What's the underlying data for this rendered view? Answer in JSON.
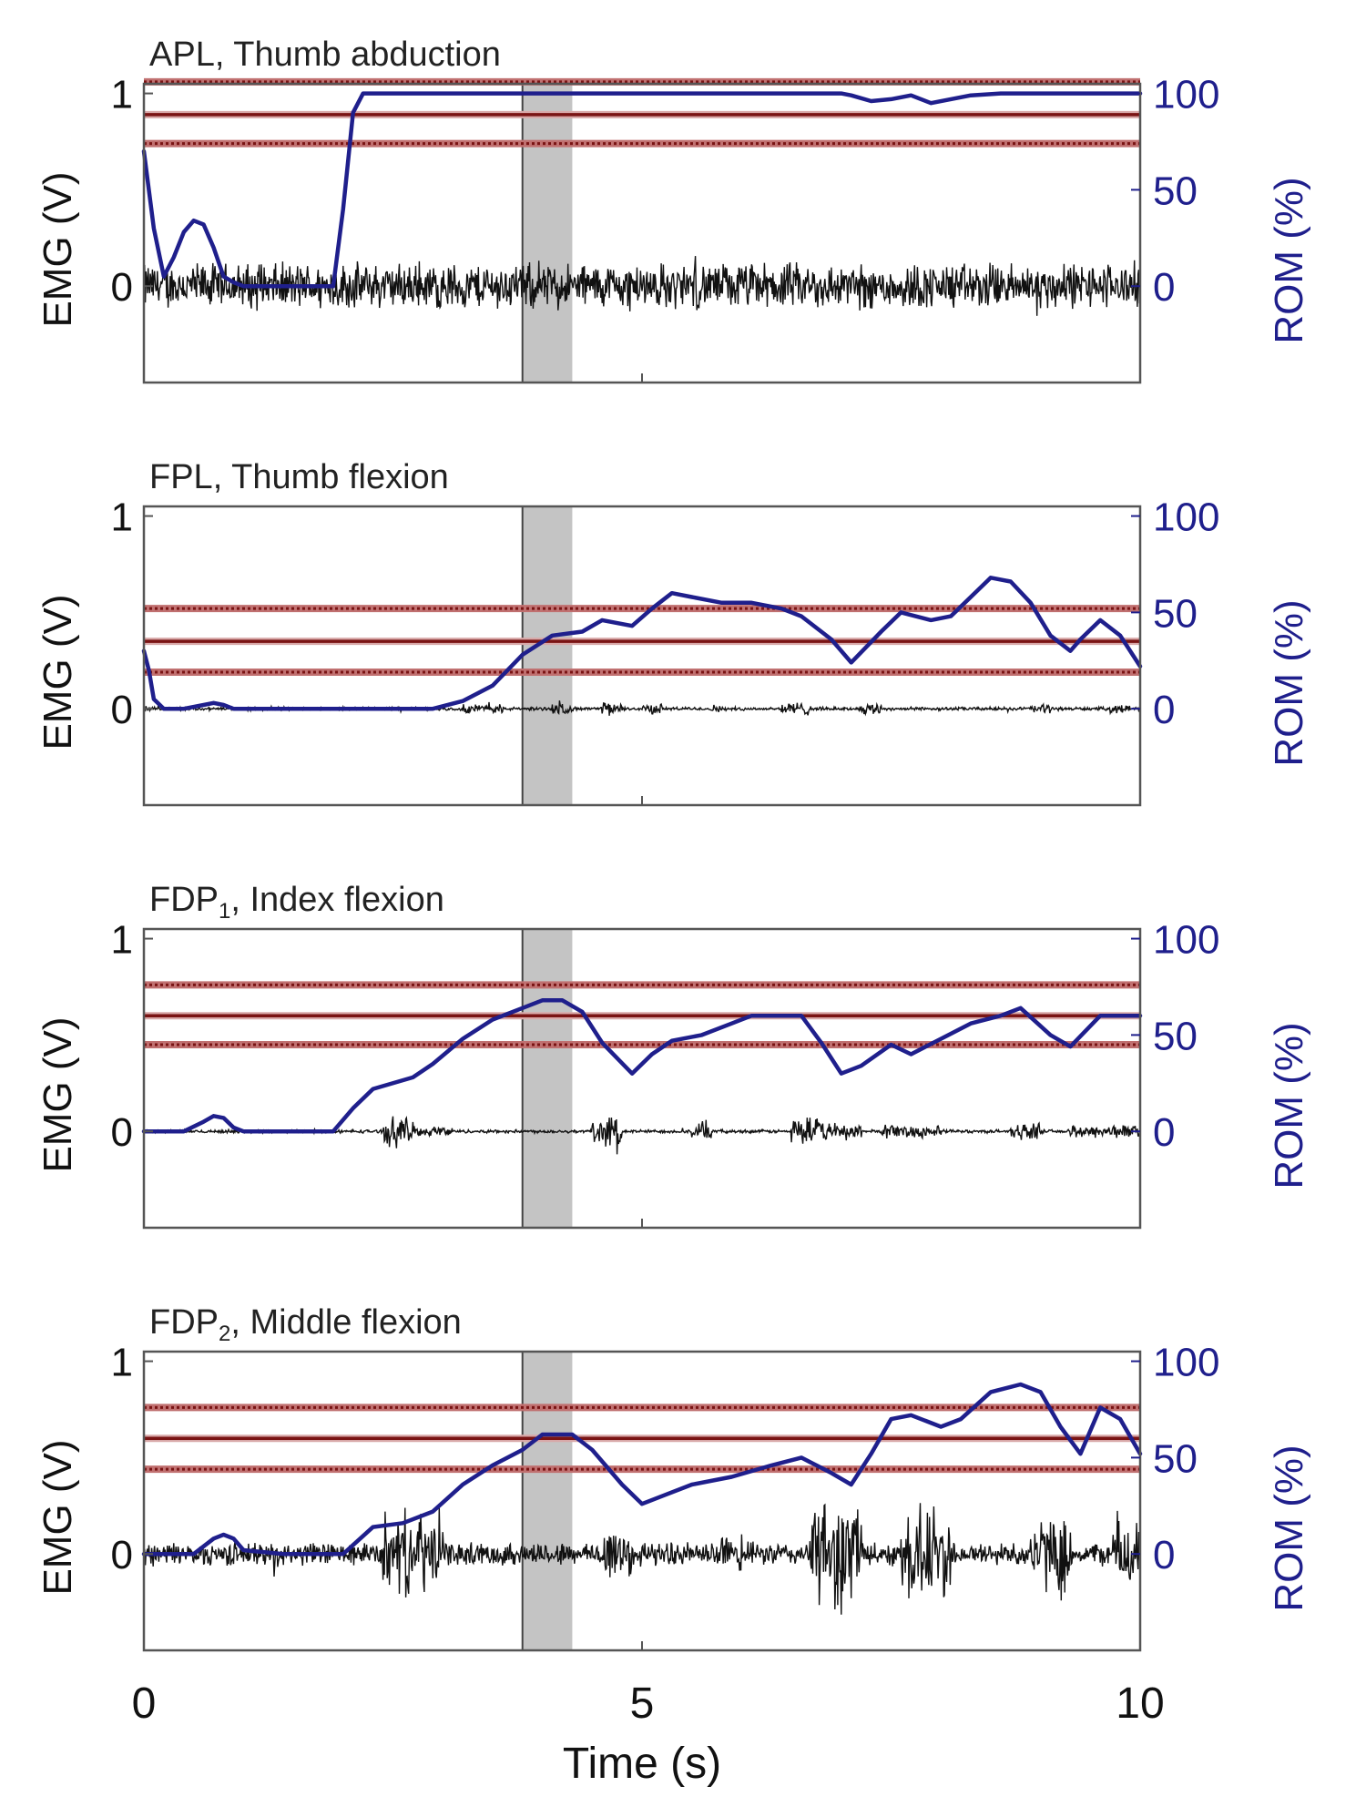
{
  "figure": {
    "xlabel": "Time (s)",
    "x_ticks": [
      "0",
      "5",
      "10"
    ]
  },
  "colors": {
    "emg": "#111111",
    "rom": "#1f1f8c",
    "threshold": "#7a1414",
    "threshold_dotted": "#c07070",
    "window": "#c4c4c4",
    "axes": "#555555"
  },
  "chart_data": [
    {
      "type": "line",
      "title_main": "APL",
      "title_sub": "",
      "title_rest": ", Thumb abduction",
      "ylabel_left": "EMG (V)",
      "ylabel_right": "ROM (%)",
      "xlim": [
        0,
        10
      ],
      "ylim_left": [
        -0.5,
        1.05
      ],
      "left_ticks": [
        "0",
        "1"
      ],
      "right_ticks": [
        "0",
        "50",
        "100"
      ],
      "right_ticks_values": [
        0,
        50,
        100
      ],
      "highlight_window": [
        3.8,
        4.3
      ],
      "threshold": {
        "center": 89,
        "upper": 106,
        "lower": 74
      },
      "emg": {
        "amplitude": 0.14,
        "bursts": []
      },
      "series": [
        {
          "name": "ROM",
          "x": [
            0,
            0.1,
            0.2,
            0.3,
            0.4,
            0.5,
            0.6,
            0.7,
            0.8,
            0.9,
            1.0,
            1.2,
            1.5,
            1.9,
            2.0,
            2.1,
            2.2,
            2.5,
            3,
            4,
            5,
            6,
            7,
            7.1,
            7.3,
            7.5,
            7.7,
            7.9,
            8.1,
            8.3,
            8.6,
            9,
            10
          ],
          "y": [
            70,
            30,
            5,
            15,
            28,
            34,
            32,
            20,
            5,
            2,
            0,
            0,
            0,
            0,
            40,
            90,
            100,
            100,
            100,
            100,
            100,
            100,
            100,
            99,
            96,
            97,
            99,
            95,
            97,
            99,
            100,
            100,
            100
          ]
        }
      ]
    },
    {
      "type": "line",
      "title_main": "FPL",
      "title_sub": "",
      "title_rest": ", Thumb flexion",
      "ylabel_left": "EMG (V)",
      "ylabel_right": "ROM (%)",
      "xlim": [
        0,
        10
      ],
      "ylim_left": [
        -0.5,
        1.05
      ],
      "left_ticks": [
        "0",
        "1"
      ],
      "right_ticks": [
        "0",
        "50",
        "100"
      ],
      "right_ticks_values": [
        0,
        50,
        100
      ],
      "highlight_window": [
        3.8,
        4.3
      ],
      "threshold": {
        "center": 35,
        "upper": 52,
        "lower": 19
      },
      "emg": {
        "amplitude": 0.01,
        "bursts": [
          [
            3.2,
            3.6,
            0.03
          ],
          [
            4.1,
            4.3,
            0.035
          ],
          [
            4.6,
            4.8,
            0.04
          ],
          [
            5.0,
            5.2,
            0.03
          ],
          [
            5.7,
            5.8,
            0.025
          ],
          [
            6.4,
            6.7,
            0.04
          ],
          [
            7.2,
            7.4,
            0.035
          ],
          [
            8.9,
            9.1,
            0.03
          ],
          [
            9.7,
            9.9,
            0.025
          ]
        ]
      },
      "series": [
        {
          "name": "ROM",
          "x": [
            0,
            0.05,
            0.1,
            0.2,
            0.4,
            0.6,
            0.7,
            0.8,
            0.9,
            1.2,
            2,
            2.7,
            2.9,
            3.2,
            3.5,
            3.8,
            4.1,
            4.4,
            4.6,
            4.9,
            5.1,
            5.3,
            5.5,
            5.8,
            6.1,
            6.4,
            6.6,
            6.9,
            7.1,
            7.4,
            7.6,
            7.9,
            8.1,
            8.3,
            8.5,
            8.7,
            8.9,
            9.1,
            9.3,
            9.4,
            9.6,
            9.8,
            10
          ],
          "y": [
            30,
            20,
            5,
            0,
            0,
            2,
            3,
            2,
            0,
            0,
            0,
            0,
            0,
            4,
            12,
            28,
            38,
            40,
            46,
            43,
            52,
            60,
            58,
            55,
            55,
            52,
            48,
            36,
            24,
            40,
            50,
            46,
            48,
            58,
            68,
            66,
            55,
            38,
            30,
            36,
            46,
            38,
            22
          ]
        }
      ]
    },
    {
      "type": "line",
      "title_main": "FDP",
      "title_sub": "1",
      "title_rest": ", Index flexion",
      "ylabel_left": "EMG (V)",
      "ylabel_right": "ROM (%)",
      "xlim": [
        0,
        10
      ],
      "ylim_left": [
        -0.5,
        1.05
      ],
      "left_ticks": [
        "0",
        "1"
      ],
      "right_ticks": [
        "0",
        "50",
        "100"
      ],
      "right_ticks_values": [
        0,
        50,
        100
      ],
      "highlight_window": [
        3.8,
        4.3
      ],
      "threshold": {
        "center": 60,
        "upper": 76,
        "lower": 45
      },
      "emg": {
        "amplitude": 0.01,
        "bursts": [
          [
            2.4,
            2.7,
            0.09
          ],
          [
            2.7,
            3.1,
            0.03
          ],
          [
            4.5,
            4.8,
            0.09
          ],
          [
            5.5,
            5.7,
            0.06
          ],
          [
            6.5,
            6.8,
            0.09
          ],
          [
            6.8,
            7.2,
            0.05
          ],
          [
            7.4,
            8.0,
            0.04
          ],
          [
            8.7,
            9.0,
            0.05
          ],
          [
            9.3,
            10,
            0.04
          ]
        ]
      },
      "series": [
        {
          "name": "ROM",
          "x": [
            0,
            0.4,
            0.6,
            0.7,
            0.8,
            0.9,
            1.0,
            1.5,
            1.9,
            2.1,
            2.3,
            2.7,
            2.9,
            3.2,
            3.5,
            3.8,
            4.0,
            4.2,
            4.4,
            4.6,
            4.9,
            5.1,
            5.3,
            5.6,
            5.9,
            6.1,
            6.3,
            6.6,
            6.8,
            7.0,
            7.2,
            7.5,
            7.7,
            8.0,
            8.3,
            8.6,
            8.8,
            9.1,
            9.3,
            9.6,
            10
          ],
          "y": [
            0,
            0,
            5,
            8,
            7,
            2,
            0,
            0,
            0,
            12,
            22,
            28,
            35,
            48,
            58,
            64,
            68,
            68,
            62,
            46,
            30,
            40,
            47,
            50,
            56,
            60,
            60,
            60,
            46,
            30,
            34,
            45,
            40,
            48,
            56,
            60,
            64,
            50,
            44,
            60,
            60
          ]
        }
      ]
    },
    {
      "type": "line",
      "title_main": "FDP",
      "title_sub": "2",
      "title_rest": ", Middle flexion",
      "ylabel_left": "EMG (V)",
      "ylabel_right": "ROM (%)",
      "xlim": [
        0,
        10
      ],
      "ylim_left": [
        -0.5,
        1.05
      ],
      "left_ticks": [
        "0",
        "1"
      ],
      "right_ticks": [
        "0",
        "50",
        "100"
      ],
      "right_ticks_values": [
        0,
        50,
        100
      ],
      "highlight_window": [
        3.8,
        4.3
      ],
      "threshold": {
        "center": 60,
        "upper": 76,
        "lower": 44
      },
      "emg": {
        "amplitude": 0.07,
        "bursts": [
          [
            2.4,
            3.0,
            0.25
          ],
          [
            4.6,
            4.9,
            0.2
          ],
          [
            5.8,
            6.0,
            0.12
          ],
          [
            6.7,
            7.2,
            0.35
          ],
          [
            7.6,
            8.1,
            0.3
          ],
          [
            8.9,
            9.3,
            0.22
          ],
          [
            9.7,
            10,
            0.25
          ]
        ]
      },
      "series": [
        {
          "name": "ROM",
          "x": [
            0,
            0.5,
            0.7,
            0.8,
            0.9,
            1.0,
            1.4,
            2.0,
            2.3,
            2.6,
            2.9,
            3.2,
            3.5,
            3.8,
            4.0,
            4.3,
            4.5,
            4.8,
            5.0,
            5.2,
            5.5,
            5.9,
            6.3,
            6.6,
            6.9,
            7.1,
            7.3,
            7.5,
            7.7,
            8.0,
            8.2,
            8.5,
            8.8,
            9.0,
            9.2,
            9.4,
            9.6,
            9.8,
            10
          ],
          "y": [
            0,
            0,
            8,
            10,
            8,
            2,
            0,
            0,
            14,
            16,
            22,
            36,
            46,
            54,
            62,
            62,
            54,
            36,
            26,
            30,
            36,
            40,
            46,
            50,
            42,
            36,
            52,
            70,
            72,
            66,
            70,
            84,
            88,
            84,
            66,
            52,
            76,
            70,
            52
          ]
        }
      ]
    }
  ]
}
